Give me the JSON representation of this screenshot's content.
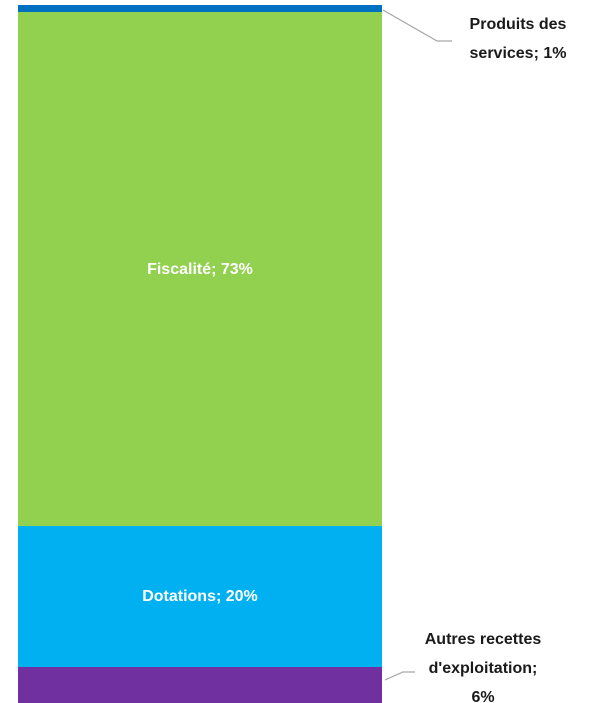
{
  "chart_data": {
    "type": "stacked_bar",
    "series": [
      {
        "name": "Autres recettes d'exploitation",
        "color": "#7030a0",
        "values": [
          6
        ],
        "value_labels": [
          "Autres recettes d'exploitation; 6%"
        ]
      },
      {
        "name": "Dotations",
        "color": "#00b0f0",
        "values": [
          20
        ],
        "value_labels": [
          "Dotations; 20%"
        ]
      },
      {
        "name": "Fiscalité",
        "color": "#92d050",
        "values": [
          73
        ],
        "value_labels": [
          "Fiscalité; 73%"
        ]
      },
      {
        "name": "Produits des services",
        "color": "#0070c0",
        "values": [
          1
        ],
        "value_labels": [
          "Produits des services; 1%"
        ]
      }
    ]
  }
}
